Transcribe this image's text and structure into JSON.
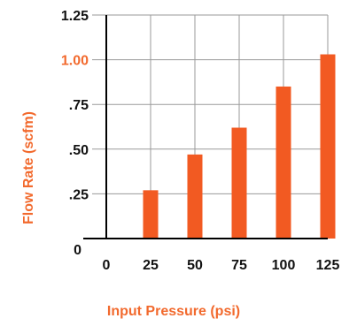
{
  "chart_data": {
    "type": "bar",
    "xlabel": "Input Pressure (psi)",
    "ylabel": "Flow Rate (scfm)",
    "x": [
      0,
      25,
      50,
      75,
      100,
      125
    ],
    "x_tick_labels": [
      "0",
      "25",
      "50",
      "75",
      "100",
      "125"
    ],
    "xlim": [
      0,
      125
    ],
    "y_tick_values": [
      0,
      0.25,
      0.5,
      0.75,
      1.0,
      1.25
    ],
    "y_tick_labels": [
      "0",
      ".25",
      ".50",
      ".75",
      "1.00",
      "1.25"
    ],
    "ylim": [
      0,
      1.25
    ],
    "highlighted_y_tick": "1.00",
    "series": [
      {
        "x": [
          25,
          50,
          75,
          100,
          125
        ],
        "values": [
          0.27,
          0.47,
          0.62,
          0.85,
          1.03
        ]
      }
    ],
    "grid": true,
    "legend": "none",
    "colors": {
      "bar": "#f25a22",
      "accent_text": "#f26a2e",
      "axis_text": "#111111",
      "grid": "#9a9a9a",
      "axis": "#000000"
    }
  }
}
